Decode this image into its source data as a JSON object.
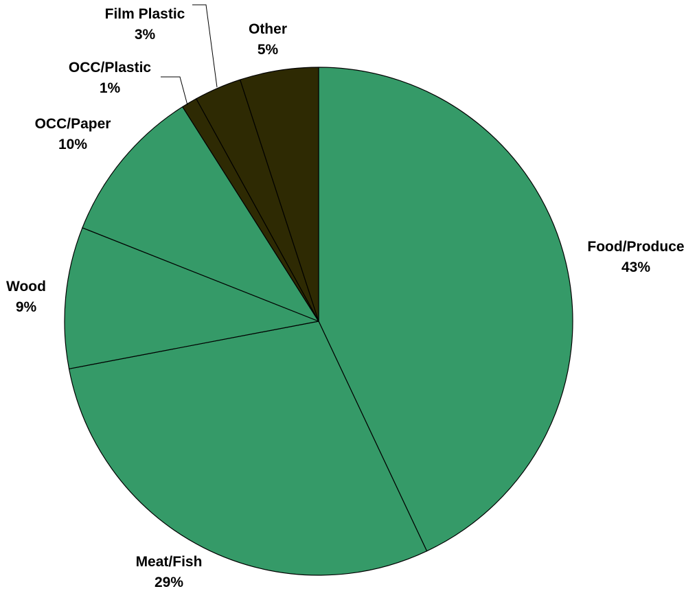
{
  "colors": {
    "green": "#359A68",
    "dark": "#2E2A03",
    "edge": "#000000"
  },
  "chart_data": {
    "type": "pie",
    "title": "",
    "start_angle_deg": 0,
    "direction": "clockwise",
    "slices": [
      {
        "label": "Food/Produce",
        "value": 43,
        "value_label": "43%",
        "color": "#359A68"
      },
      {
        "label": "Meat/Fish",
        "value": 29,
        "value_label": "29%",
        "color": "#359A68"
      },
      {
        "label": "Wood",
        "value": 9,
        "value_label": "9%",
        "color": "#359A68"
      },
      {
        "label": "OCC/Paper",
        "value": 10,
        "value_label": "10%",
        "color": "#359A68"
      },
      {
        "label": "OCC/Plastic",
        "value": 1,
        "value_label": "1%",
        "color": "#2E2A03"
      },
      {
        "label": "Film Plastic",
        "value": 3,
        "value_label": "3%",
        "color": "#2E2A03"
      },
      {
        "label": "Other",
        "value": 5,
        "value_label": "5%",
        "color": "#2E2A03"
      }
    ]
  }
}
